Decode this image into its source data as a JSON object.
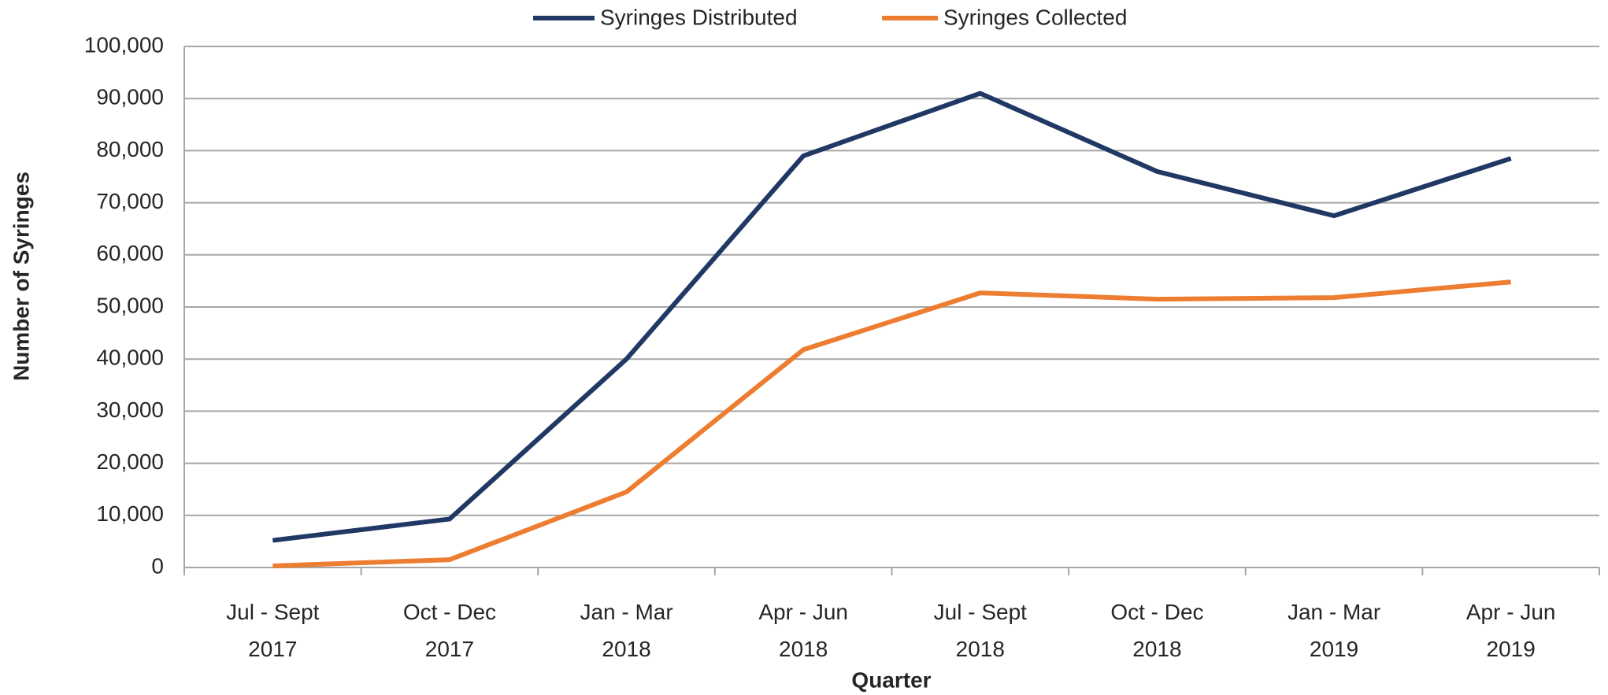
{
  "chart_data": {
    "type": "line",
    "legend": "top",
    "grid": true,
    "x_label": "Quarter",
    "y_label": "Number of Syringes",
    "categories": [
      "Jul - Sept\n2017",
      "Oct - Dec\n2017",
      "Jan - Mar\n2018",
      "Apr - Jun\n2018",
      "Jul - Sept\n2018",
      "Oct - Dec\n2018",
      "Jan - Mar\n2019",
      "Apr - Jun\n2019"
    ],
    "series": [
      {
        "name": "Syringes Distributed",
        "color": "#203864",
        "values": [
          5200,
          9300,
          40000,
          79000,
          91000,
          76000,
          67500,
          78500
        ]
      },
      {
        "name": "Syringes Collected",
        "color": "#ed7d31",
        "values": [
          300,
          1500,
          14500,
          41800,
          52700,
          51500,
          51800,
          54800
        ]
      }
    ],
    "ylim": [
      0,
      100000
    ],
    "yticks": [
      0,
      {
        "value": 10000,
        "label": "10,000"
      },
      {
        "value": 20000,
        "label": "20,000"
      },
      {
        "value": 30000,
        "label": "30,000"
      },
      {
        "value": 40000,
        "label": "40,000"
      },
      {
        "value": 50000,
        "label": "50,000"
      },
      {
        "value": 60000,
        "label": "60,000"
      },
      {
        "value": 70000,
        "label": "70,000"
      },
      {
        "value": 80000,
        "label": "80,000"
      },
      {
        "value": 90000,
        "label": "90,000"
      },
      {
        "value": 100000,
        "label": "100,000"
      }
    ]
  }
}
